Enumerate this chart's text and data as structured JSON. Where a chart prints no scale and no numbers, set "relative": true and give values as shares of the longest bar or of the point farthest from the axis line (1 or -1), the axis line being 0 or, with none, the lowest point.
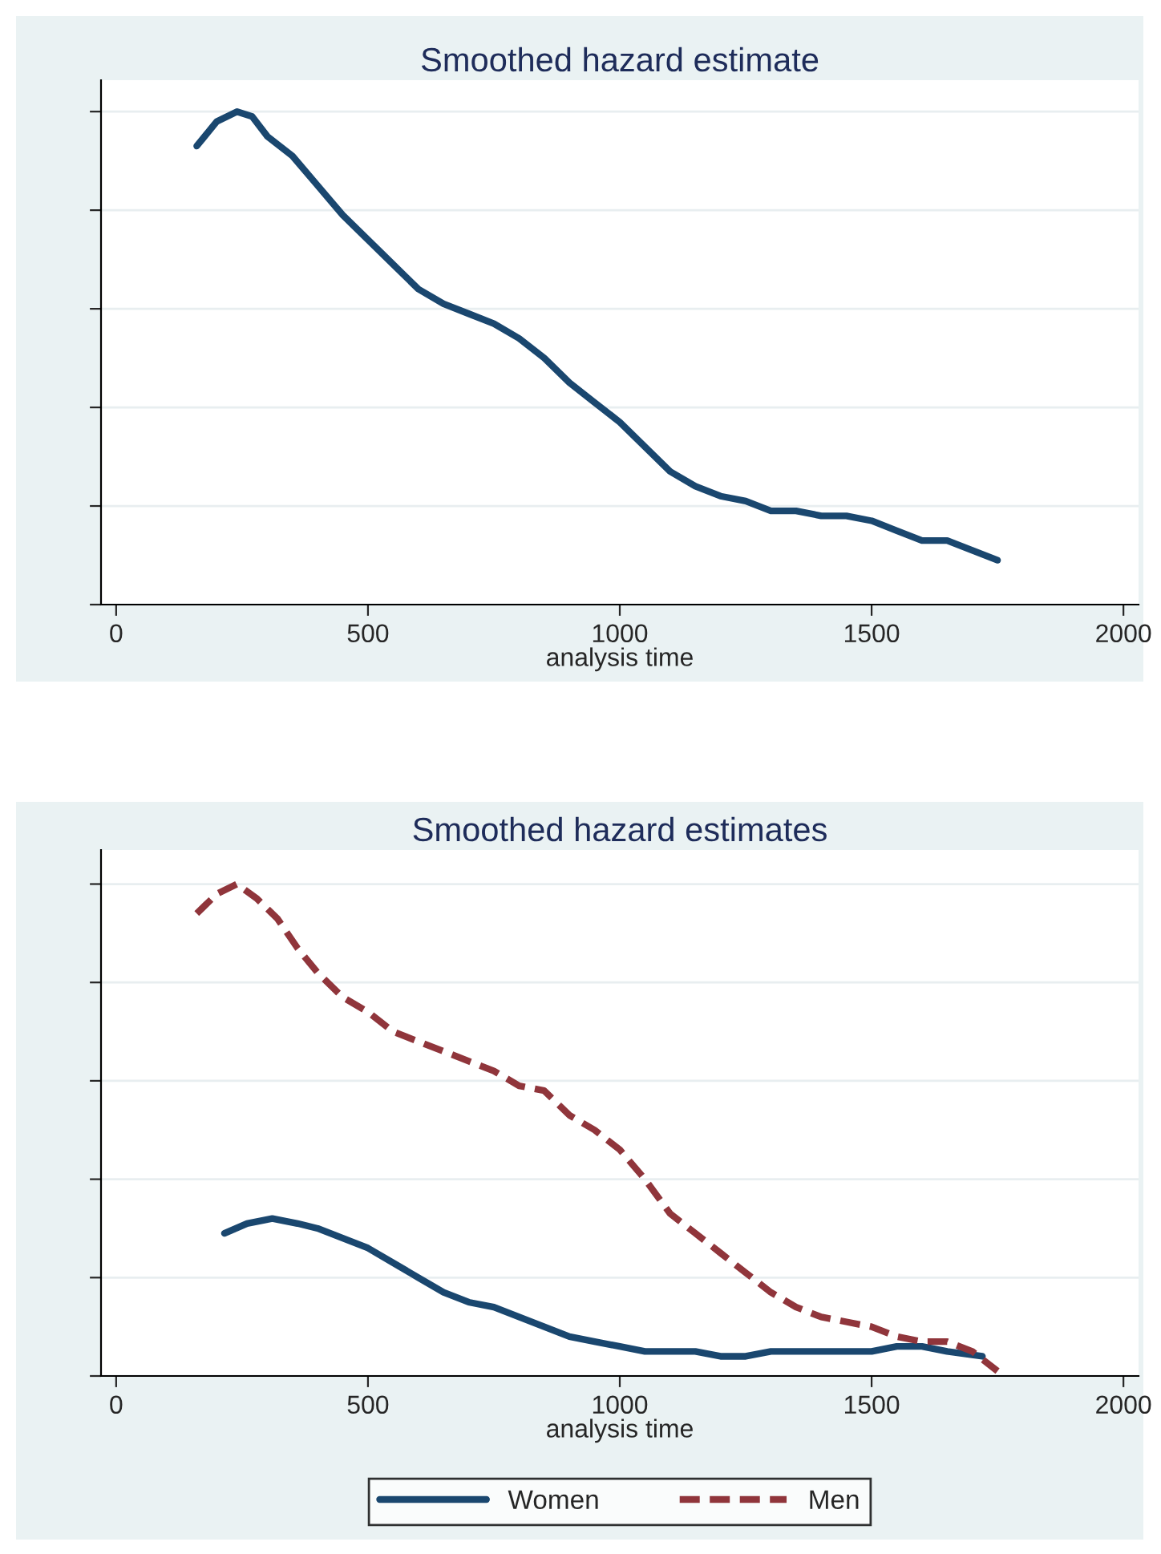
{
  "chart_data": [
    {
      "type": "line",
      "title": "Smoothed hazard estimate",
      "xlabel": "analysis time",
      "relative": true,
      "xlim": [
        -30,
        2030
      ],
      "xticks": [
        0,
        500,
        1000,
        1500,
        2000
      ],
      "grid": "y",
      "tick_labels": "x",
      "legend": false,
      "series": [
        {
          "color": "#1a476f",
          "line_style": "solid",
          "x": [
            160,
            200,
            240,
            270,
            300,
            350,
            400,
            450,
            500,
            550,
            600,
            650,
            700,
            750,
            800,
            850,
            900,
            950,
            1000,
            1050,
            1100,
            1150,
            1200,
            1250,
            1300,
            1350,
            1400,
            1450,
            1500,
            1550,
            1600,
            1650,
            1700,
            1750
          ],
          "values": [
            0.93,
            0.98,
            1.0,
            0.99,
            0.95,
            0.91,
            0.85,
            0.79,
            0.74,
            0.69,
            0.64,
            0.61,
            0.59,
            0.57,
            0.54,
            0.5,
            0.45,
            0.41,
            0.37,
            0.32,
            0.27,
            0.24,
            0.22,
            0.21,
            0.19,
            0.19,
            0.18,
            0.18,
            0.17,
            0.15,
            0.13,
            0.13,
            0.11,
            0.09
          ]
        }
      ]
    },
    {
      "type": "line",
      "title": "Smoothed hazard estimates",
      "xlabel": "analysis time",
      "relative": true,
      "xlim": [
        -30,
        2030
      ],
      "xticks": [
        0,
        500,
        1000,
        1500,
        2000
      ],
      "grid": "y",
      "tick_labels": "x",
      "legend": "bottom",
      "series": [
        {
          "name": "Women",
          "color": "#1a476f",
          "line_style": "solid",
          "x": [
            215,
            260,
            310,
            360,
            400,
            450,
            500,
            550,
            600,
            650,
            700,
            750,
            800,
            850,
            900,
            950,
            1000,
            1050,
            1100,
            1150,
            1200,
            1250,
            1300,
            1350,
            1400,
            1450,
            1500,
            1550,
            1600,
            1650,
            1720
          ],
          "values": [
            0.29,
            0.31,
            0.32,
            0.31,
            0.3,
            0.28,
            0.26,
            0.23,
            0.2,
            0.17,
            0.15,
            0.14,
            0.12,
            0.1,
            0.08,
            0.07,
            0.06,
            0.05,
            0.05,
            0.05,
            0.04,
            0.04,
            0.05,
            0.05,
            0.05,
            0.05,
            0.05,
            0.06,
            0.06,
            0.05,
            0.04
          ]
        },
        {
          "name": "Men",
          "color": "#90353b",
          "line_style": "dashed",
          "x": [
            160,
            200,
            240,
            280,
            320,
            360,
            400,
            450,
            500,
            550,
            600,
            650,
            700,
            750,
            800,
            850,
            900,
            950,
            1000,
            1050,
            1100,
            1150,
            1200,
            1250,
            1300,
            1350,
            1400,
            1450,
            1500,
            1550,
            1600,
            1650,
            1700,
            1750
          ],
          "values": [
            0.94,
            0.98,
            1.0,
            0.97,
            0.93,
            0.87,
            0.82,
            0.77,
            0.74,
            0.7,
            0.68,
            0.66,
            0.64,
            0.62,
            0.59,
            0.58,
            0.53,
            0.5,
            0.46,
            0.4,
            0.33,
            0.29,
            0.25,
            0.21,
            0.17,
            0.14,
            0.12,
            0.11,
            0.1,
            0.08,
            0.07,
            0.07,
            0.05,
            0.01
          ]
        }
      ]
    }
  ]
}
